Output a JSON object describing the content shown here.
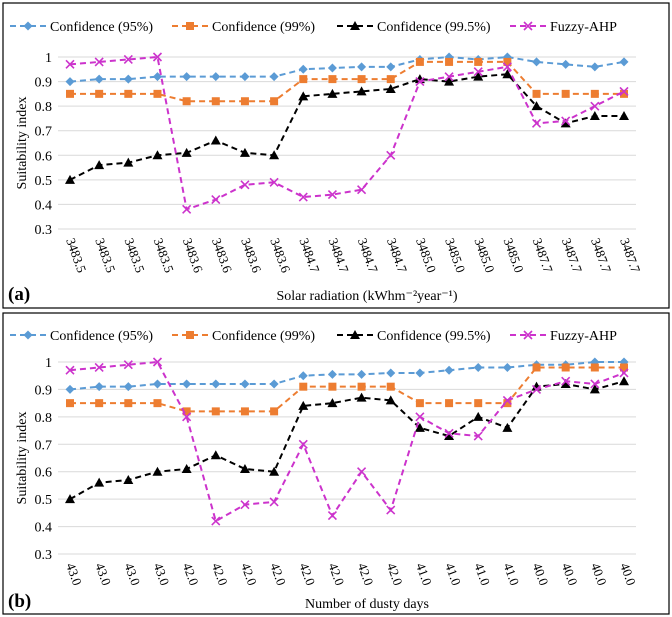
{
  "chart_data": [
    {
      "type": "line",
      "panel_label": "(a)",
      "xlabel": "Solar radiation (kWhm⁻²year⁻¹)",
      "ylabel": "Suitability index",
      "ylim": [
        0.3,
        1.0
      ],
      "yticks": [
        "0.3",
        "0.4",
        "0.5",
        "0.6",
        "0.7",
        "0.8",
        "0.9",
        "1"
      ],
      "categories": [
        "3483.5",
        "3483.5",
        "3483.5",
        "3483.5",
        "3483.6",
        "3483.6",
        "3483.6",
        "3483.6",
        "3484.7",
        "3484.7",
        "3484.7",
        "3484.7",
        "3485.0",
        "3485.0",
        "3485.0",
        "3485.0",
        "3487.7",
        "3487.7",
        "3487.7",
        "3487.7"
      ],
      "series": [
        {
          "name": "Confidence (95%)",
          "color": "#5B9BD5",
          "marker": "diamond",
          "values": [
            0.9,
            0.91,
            0.91,
            0.92,
            0.92,
            0.92,
            0.92,
            0.92,
            0.95,
            0.955,
            0.96,
            0.96,
            0.99,
            1.0,
            0.99,
            1.0,
            0.98,
            0.97,
            0.96,
            0.98
          ]
        },
        {
          "name": "Confidence (99%)",
          "color": "#ED7D31",
          "marker": "square",
          "values": [
            0.85,
            0.85,
            0.85,
            0.85,
            0.82,
            0.82,
            0.82,
            0.82,
            0.91,
            0.91,
            0.91,
            0.91,
            0.98,
            0.98,
            0.98,
            0.98,
            0.85,
            0.85,
            0.85,
            0.85
          ]
        },
        {
          "name": "Confidence (99.5%)",
          "color": "#000000",
          "marker": "triangle",
          "values": [
            0.5,
            0.56,
            0.57,
            0.6,
            0.61,
            0.66,
            0.61,
            0.6,
            0.84,
            0.85,
            0.86,
            0.87,
            0.91,
            0.9,
            0.92,
            0.93,
            0.8,
            0.73,
            0.76,
            0.76
          ]
        },
        {
          "name": "Fuzzy-AHP",
          "color": "#CC33CC",
          "marker": "x",
          "values": [
            0.97,
            0.98,
            0.99,
            1.0,
            0.38,
            0.42,
            0.48,
            0.49,
            0.43,
            0.44,
            0.46,
            0.6,
            0.9,
            0.92,
            0.94,
            0.96,
            0.73,
            0.74,
            0.8,
            0.86
          ]
        }
      ]
    },
    {
      "type": "line",
      "panel_label": "(b)",
      "xlabel": "Number of dusty days",
      "ylabel": "Suitability index",
      "ylim": [
        0.3,
        1.0
      ],
      "yticks": [
        "0.3",
        "0.4",
        "0.5",
        "0.6",
        "0.7",
        "0.8",
        "0.9",
        "1"
      ],
      "categories": [
        "43.0",
        "43.0",
        "43.0",
        "43.0",
        "42.0",
        "42.0",
        "42.0",
        "42.0",
        "42.0",
        "42.0",
        "42.0",
        "42.0",
        "41.0",
        "41.0",
        "41.0",
        "41.0",
        "40.0",
        "40.0",
        "40.0",
        "40.0"
      ],
      "series": [
        {
          "name": "Confidence (95%)",
          "color": "#5B9BD5",
          "marker": "diamond",
          "values": [
            0.9,
            0.91,
            0.91,
            0.92,
            0.92,
            0.92,
            0.92,
            0.92,
            0.95,
            0.955,
            0.955,
            0.96,
            0.96,
            0.97,
            0.98,
            0.98,
            0.99,
            0.99,
            1.0,
            1.0
          ]
        },
        {
          "name": "Confidence (99%)",
          "color": "#ED7D31",
          "marker": "square",
          "values": [
            0.85,
            0.85,
            0.85,
            0.85,
            0.82,
            0.82,
            0.82,
            0.82,
            0.91,
            0.91,
            0.91,
            0.91,
            0.85,
            0.85,
            0.85,
            0.85,
            0.98,
            0.98,
            0.98,
            0.98
          ]
        },
        {
          "name": "Confidence (99.5%)",
          "color": "#000000",
          "marker": "triangle",
          "values": [
            0.5,
            0.56,
            0.57,
            0.6,
            0.61,
            0.66,
            0.61,
            0.6,
            0.84,
            0.85,
            0.87,
            0.86,
            0.76,
            0.73,
            0.8,
            0.76,
            0.91,
            0.92,
            0.9,
            0.93
          ]
        },
        {
          "name": "Fuzzy-AHP",
          "color": "#CC33CC",
          "marker": "x",
          "values": [
            0.97,
            0.98,
            0.99,
            1.0,
            0.8,
            0.42,
            0.48,
            0.49,
            0.7,
            0.44,
            0.6,
            0.46,
            0.8,
            0.74,
            0.73,
            0.86,
            0.9,
            0.93,
            0.92,
            0.96
          ]
        }
      ]
    }
  ]
}
